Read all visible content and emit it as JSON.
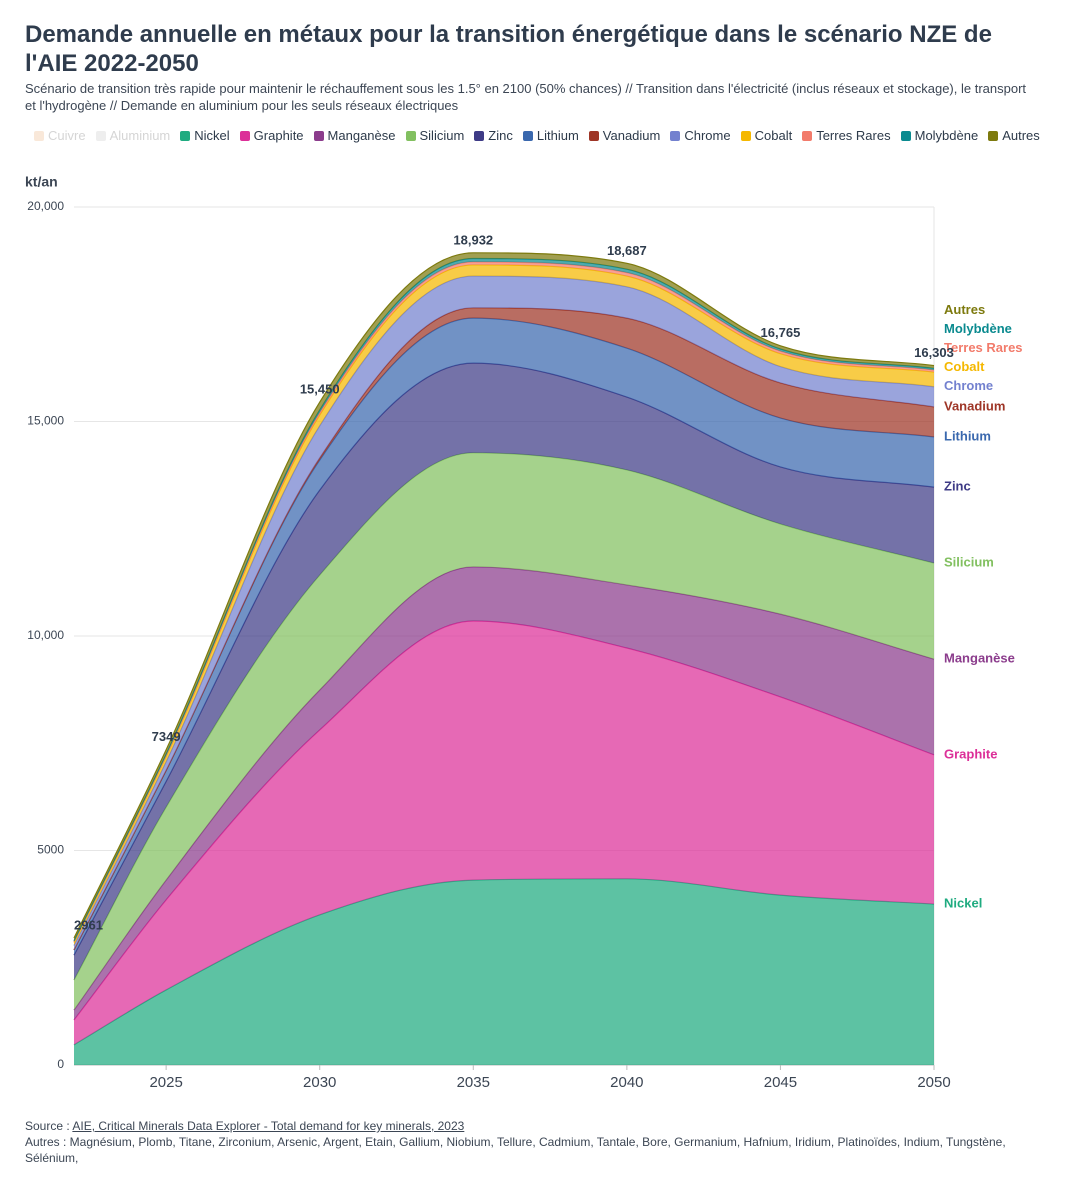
{
  "chart_data": {
    "type": "stacked_area",
    "title": "Demande annuelle en métaux pour la transition énergétique dans le scénario NZE de l'AIE 2022-2050",
    "subtitle": "Scénario de transition très rapide pour maintenir le réchauffement sous les 1.5° en 2100 (50% chances) // Transition dans l'électricité (inclus réseaux et stockage), le transport et l'hydrogène // Demande en aluminium pour les seuls réseaux électriques",
    "y_axis_label": "kt/an",
    "x": [
      2022,
      2025,
      2030,
      2035,
      2040,
      2045,
      2050
    ],
    "xlim": [
      2022,
      2050
    ],
    "xticks": [
      2025,
      2030,
      2035,
      2040,
      2045,
      2050
    ],
    "ylim": [
      0,
      20000
    ],
    "yticks": [
      0,
      5000,
      {
        "value": 10000,
        "label": "10,000"
      },
      {
        "value": 15000,
        "label": "15,000"
      },
      {
        "value": 20000,
        "label": "20,000"
      }
    ],
    "grid": true,
    "series": [
      {
        "name": "Cuivre",
        "color": "#f5d9bf",
        "visible": false,
        "values": [
          null,
          null,
          null,
          null,
          null,
          null,
          null
        ]
      },
      {
        "name": "Aluminium",
        "color": "#e3e3e3",
        "visible": false,
        "values": [
          null,
          null,
          null,
          null,
          null,
          null,
          null
        ]
      },
      {
        "name": "Nickel",
        "color": "#1fab80",
        "visible": true,
        "values": [
          470,
          1750,
          3500,
          4310,
          4340,
          3960,
          3750
        ]
      },
      {
        "name": "Graphite",
        "color": "#dc2f98",
        "visible": true,
        "values": [
          580,
          2100,
          4310,
          6040,
          5380,
          4620,
          3480
        ]
      },
      {
        "name": "Manganèse",
        "color": "#8b3c8c",
        "visible": true,
        "values": [
          230,
          460,
          930,
          1260,
          1470,
          1930,
          2230
        ]
      },
      {
        "name": "Silicium",
        "color": "#82c060",
        "visible": true,
        "values": [
          700,
          1700,
          2680,
          2660,
          2680,
          2100,
          2240
        ]
      },
      {
        "name": "Zinc",
        "color": "#3e3b86",
        "visible": true,
        "values": [
          580,
          600,
          1980,
          2090,
          1700,
          1330,
          1770
        ]
      },
      {
        "name": "Lithium",
        "color": "#3a68ae",
        "visible": true,
        "values": [
          120,
          250,
          700,
          1050,
          1140,
          1140,
          1170
        ]
      },
      {
        "name": "Vanadium",
        "color": "#9e3526",
        "visible": true,
        "values": [
          5,
          10,
          50,
          240,
          700,
          820,
          700
        ]
      },
      {
        "name": "Chrome",
        "color": "#7381cf",
        "visible": true,
        "values": [
          100,
          200,
          750,
          740,
          730,
          380,
          470
        ]
      },
      {
        "name": "Cobalt",
        "color": "#f5b800",
        "visible": true,
        "values": [
          70,
          120,
          250,
          260,
          250,
          300,
          340
        ]
      },
      {
        "name": "Terres Rares",
        "color": "#f27b6b",
        "visible": true,
        "values": [
          20,
          30,
          60,
          70,
          80,
          60,
          50
        ]
      },
      {
        "name": "Molybdène",
        "color": "#0a8a8f",
        "visible": true,
        "values": [
          20,
          30,
          60,
          80,
          80,
          50,
          40
        ]
      },
      {
        "name": "Autres",
        "color": "#7d7a0e",
        "visible": true,
        "values": [
          66,
          99,
          180,
          132,
          137,
          75,
          63
        ]
      }
    ],
    "totals": [
      2961,
      7349,
      15450,
      18932,
      18687,
      16765,
      16303
    ],
    "total_labels": [
      "2961",
      "7349",
      "15,450",
      "18,932",
      "18,687",
      "16,765",
      "16,303"
    ],
    "source_label": "Source :",
    "source_link": "AIE, Critical Minerals Data Explorer - Total demand for key minerals, 2023",
    "note": "Autres : Magnésium, Plomb, Titane, Zirconium, Arsenic, Argent, Etain, Gallium, Niobium, Tellure, Cadmium, Tantale, Bore, Germanium, Hafnium, Iridium, Platinoïdes, Indium, Tungstène, Sélénium,"
  }
}
